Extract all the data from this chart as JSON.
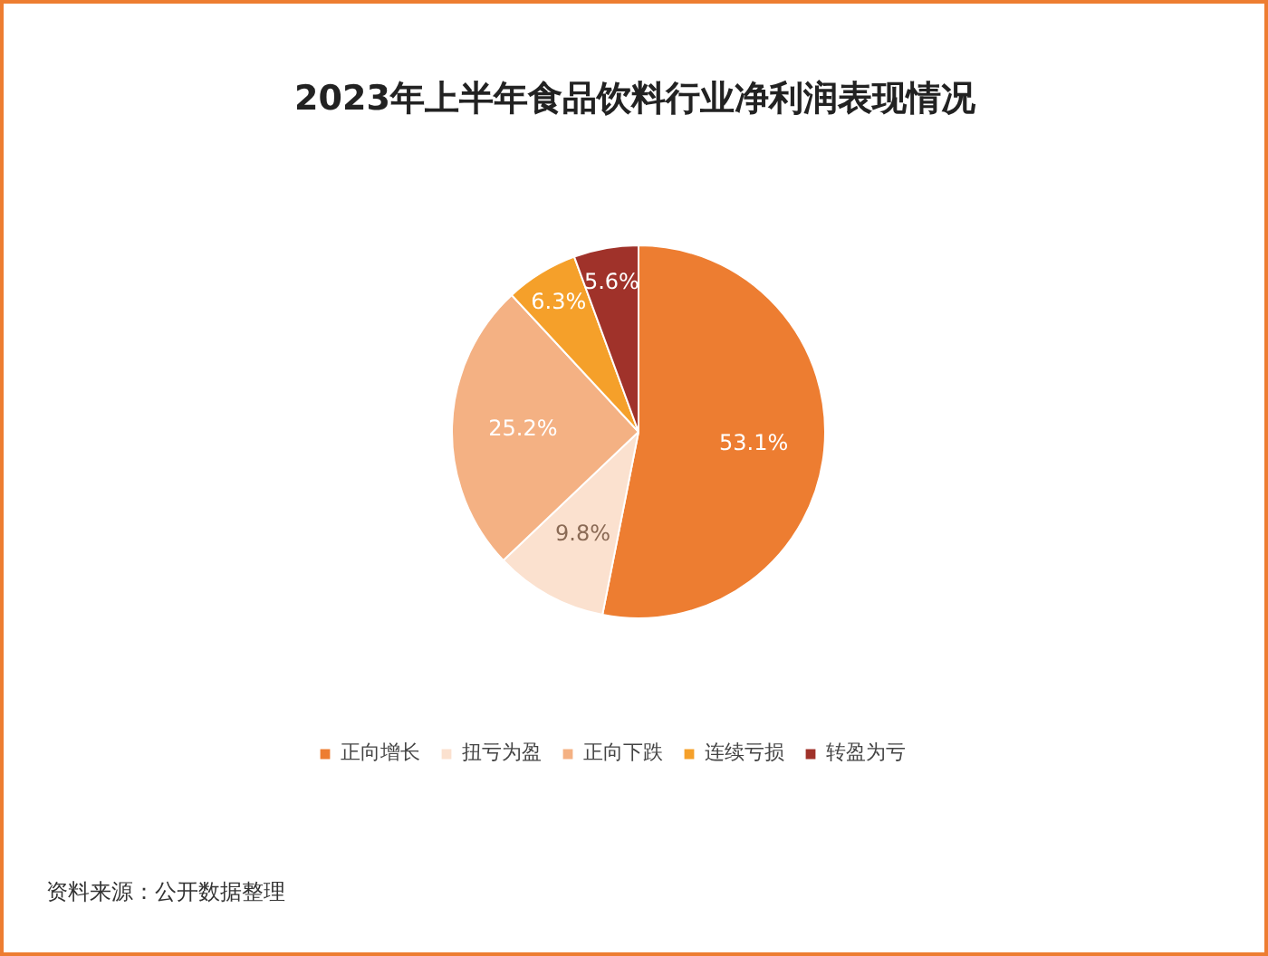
{
  "chart_data": {
    "type": "pie",
    "title": "2023年上半年食品饮料行业净利润表现情况",
    "categories": [
      "正向增长",
      "扭亏为盈",
      "正向下跌",
      "连续亏损",
      "转盈为亏"
    ],
    "values": [
      53.1,
      9.8,
      25.2,
      6.3,
      5.6
    ],
    "colors": [
      "#ed7d31",
      "#fbe1cf",
      "#f4b183",
      "#f5a02a",
      "#a0322a"
    ],
    "value_labels": [
      "53.1%",
      "9.8%",
      "25.2%",
      "6.3%",
      "5.6%"
    ],
    "legend": "bottom",
    "annotations": [
      "资料来源：公开数据整理"
    ]
  }
}
